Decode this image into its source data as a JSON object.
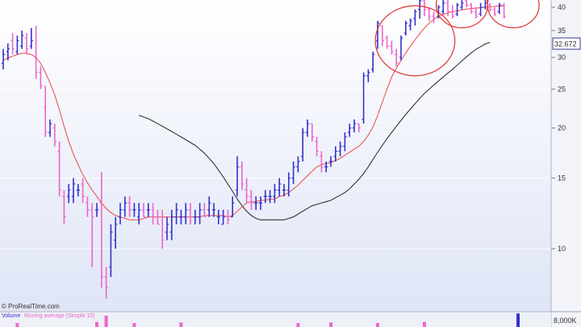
{
  "credit": "© ProRealTime.com",
  "price_readout": "32.672",
  "chart_data": {
    "type": "ohlc",
    "scale": "log",
    "ylim": [
      7.5,
      42
    ],
    "y_ticks": [
      40,
      35,
      30,
      25,
      20,
      15,
      10
    ],
    "grid": true,
    "colors": {
      "up": "#3333cc",
      "down": "#ee66cc",
      "ma_fast": "#ee5555",
      "ma_slow": "#333333",
      "circle": "#dd3333",
      "readout_box": "#ffffff"
    },
    "bars": [
      {
        "h": 31.5,
        "l": 28.0,
        "o": 29.0,
        "c": 30.5
      },
      {
        "h": 32.5,
        "l": 29.5,
        "o": 31.0,
        "c": 31.5
      },
      {
        "h": 34.5,
        "l": 30.5,
        "o": 33.0,
        "c": 31.5
      },
      {
        "h": 34.0,
        "l": 30.5,
        "o": 31.0,
        "c": 33.0
      },
      {
        "h": 35.0,
        "l": 31.5,
        "o": 32.0,
        "c": 34.0
      },
      {
        "h": 34.5,
        "l": 30.5,
        "o": 33.5,
        "c": 31.5
      },
      {
        "h": 35.5,
        "l": 31.5,
        "o": 32.0,
        "c": 33.0
      },
      {
        "h": 36.0,
        "l": 26.5,
        "o": 30.0,
        "c": 27.5
      },
      {
        "h": 28.5,
        "l": 25.0,
        "o": 27.5,
        "c": 25.5
      },
      {
        "h": 25.5,
        "l": 19.0,
        "o": 22.5,
        "c": 19.5
      },
      {
        "h": 21.0,
        "l": 19.0,
        "o": 19.5,
        "c": 20.5
      },
      {
        "h": 20.5,
        "l": 18.0,
        "o": 20.0,
        "c": 18.5
      },
      {
        "h": 18.5,
        "l": 13.5,
        "o": 17.5,
        "c": 14.0
      },
      {
        "h": 14.0,
        "l": 11.5,
        "o": 13.5,
        "c": 12.0
      },
      {
        "h": 14.5,
        "l": 13.0,
        "o": 13.5,
        "c": 14.0
      },
      {
        "h": 15.0,
        "l": 13.0,
        "o": 13.5,
        "c": 14.5
      },
      {
        "h": 14.5,
        "l": 13.5,
        "o": 14.0,
        "c": 14.0
      },
      {
        "h": 15.0,
        "l": 13.0,
        "o": 14.5,
        "c": 13.5
      },
      {
        "h": 13.5,
        "l": 12.0,
        "o": 13.0,
        "c": 12.5
      },
      {
        "h": 13.0,
        "l": 9.0,
        "o": 12.5,
        "c": 12.0
      },
      {
        "h": 13.0,
        "l": 12.0,
        "o": 12.5,
        "c": 12.5
      },
      {
        "h": 15.5,
        "l": 8.0,
        "o": 13.0,
        "c": 8.5
      },
      {
        "h": 9.0,
        "l": 7.5,
        "o": 8.5,
        "c": 8.0
      },
      {
        "h": 11.5,
        "l": 8.5,
        "o": 9.0,
        "c": 11.0
      },
      {
        "h": 12.0,
        "l": 10.0,
        "o": 10.5,
        "c": 11.5
      },
      {
        "h": 13.0,
        "l": 11.5,
        "o": 12.0,
        "c": 12.5
      },
      {
        "h": 13.5,
        "l": 12.0,
        "o": 12.5,
        "c": 13.0
      },
      {
        "h": 13.5,
        "l": 12.0,
        "o": 13.0,
        "c": 12.5
      },
      {
        "h": 13.0,
        "l": 12.0,
        "o": 12.5,
        "c": 12.5
      },
      {
        "h": 13.0,
        "l": 11.5,
        "o": 12.0,
        "c": 12.5
      },
      {
        "h": 13.0,
        "l": 12.0,
        "o": 12.5,
        "c": 12.0
      },
      {
        "h": 13.0,
        "l": 12.0,
        "o": 12.5,
        "c": 12.5
      },
      {
        "h": 13.0,
        "l": 11.5,
        "o": 12.5,
        "c": 12.0
      },
      {
        "h": 12.5,
        "l": 11.5,
        "o": 12.0,
        "c": 11.5
      },
      {
        "h": 12.5,
        "l": 10.0,
        "o": 12.0,
        "c": 10.5
      },
      {
        "h": 12.0,
        "l": 10.5,
        "o": 11.0,
        "c": 11.5
      },
      {
        "h": 12.5,
        "l": 10.5,
        "o": 11.0,
        "c": 12.0
      },
      {
        "h": 13.0,
        "l": 11.5,
        "o": 12.0,
        "c": 12.5
      },
      {
        "h": 12.5,
        "l": 11.5,
        "o": 12.0,
        "c": 12.0
      },
      {
        "h": 13.0,
        "l": 11.5,
        "o": 12.0,
        "c": 12.5
      },
      {
        "h": 13.0,
        "l": 11.5,
        "o": 12.5,
        "c": 12.0
      },
      {
        "h": 12.5,
        "l": 11.5,
        "o": 12.0,
        "c": 12.0
      },
      {
        "h": 13.0,
        "l": 11.5,
        "o": 12.0,
        "c": 12.5
      },
      {
        "h": 13.0,
        "l": 12.0,
        "o": 12.5,
        "c": 12.0
      },
      {
        "h": 13.5,
        "l": 12.0,
        "o": 12.5,
        "c": 13.0
      },
      {
        "h": 13.0,
        "l": 12.0,
        "o": 12.5,
        "c": 12.5
      },
      {
        "h": 12.5,
        "l": 11.5,
        "o": 12.0,
        "c": 12.0
      },
      {
        "h": 12.5,
        "l": 11.5,
        "o": 11.5,
        "c": 12.0
      },
      {
        "h": 12.5,
        "l": 11.5,
        "o": 12.0,
        "c": 11.8
      },
      {
        "h": 13.5,
        "l": 12.0,
        "o": 12.0,
        "c": 13.0
      },
      {
        "h": 17.0,
        "l": 13.5,
        "o": 14.0,
        "c": 16.0
      },
      {
        "h": 16.5,
        "l": 14.0,
        "o": 16.0,
        "c": 14.5
      },
      {
        "h": 15.0,
        "l": 13.0,
        "o": 14.0,
        "c": 13.5
      },
      {
        "h": 14.0,
        "l": 12.5,
        "o": 13.5,
        "c": 13.0
      },
      {
        "h": 13.5,
        "l": 12.5,
        "o": 13.0,
        "c": 13.0
      },
      {
        "h": 13.5,
        "l": 12.5,
        "o": 13.0,
        "c": 13.0
      },
      {
        "h": 14.0,
        "l": 13.0,
        "o": 13.5,
        "c": 13.5
      },
      {
        "h": 14.0,
        "l": 13.0,
        "o": 13.5,
        "c": 13.5
      },
      {
        "h": 14.5,
        "l": 13.0,
        "o": 13.5,
        "c": 14.0
      },
      {
        "h": 15.0,
        "l": 13.5,
        "o": 14.0,
        "c": 14.5
      },
      {
        "h": 14.5,
        "l": 13.5,
        "o": 14.0,
        "c": 14.0
      },
      {
        "h": 15.5,
        "l": 13.5,
        "o": 14.0,
        "c": 15.0
      },
      {
        "h": 16.5,
        "l": 14.5,
        "o": 15.0,
        "c": 16.0
      },
      {
        "h": 17.0,
        "l": 15.5,
        "o": 16.0,
        "c": 16.5
      },
      {
        "h": 20.0,
        "l": 16.5,
        "o": 17.0,
        "c": 19.5
      },
      {
        "h": 21.0,
        "l": 19.0,
        "o": 19.5,
        "c": 20.5
      },
      {
        "h": 20.5,
        "l": 18.5,
        "o": 20.5,
        "c": 19.0
      },
      {
        "h": 19.0,
        "l": 17.0,
        "o": 18.5,
        "c": 17.5
      },
      {
        "h": 17.5,
        "l": 15.5,
        "o": 17.0,
        "c": 16.0
      },
      {
        "h": 16.5,
        "l": 15.5,
        "o": 16.0,
        "c": 16.0
      },
      {
        "h": 17.0,
        "l": 16.0,
        "o": 16.5,
        "c": 16.5
      },
      {
        "h": 18.0,
        "l": 16.5,
        "o": 17.0,
        "c": 17.5
      },
      {
        "h": 18.5,
        "l": 17.0,
        "o": 17.5,
        "c": 18.0
      },
      {
        "h": 19.5,
        "l": 17.5,
        "o": 18.0,
        "c": 19.0
      },
      {
        "h": 20.5,
        "l": 19.0,
        "o": 19.5,
        "c": 20.0
      },
      {
        "h": 21.0,
        "l": 19.5,
        "o": 20.0,
        "c": 20.5
      },
      {
        "h": 20.5,
        "l": 19.5,
        "o": 20.5,
        "c": 20.0
      },
      {
        "h": 27.5,
        "l": 20.5,
        "o": 21.0,
        "c": 27.0
      },
      {
        "h": 28.0,
        "l": 26.0,
        "o": 27.0,
        "c": 27.5
      },
      {
        "h": 31.0,
        "l": 27.5,
        "o": 28.0,
        "c": 30.5
      },
      {
        "h": 37.0,
        "l": 31.5,
        "o": 33.0,
        "c": 36.5
      },
      {
        "h": 36.0,
        "l": 32.0,
        "o": 36.0,
        "c": 33.0
      },
      {
        "h": 34.0,
        "l": 31.5,
        "o": 33.5,
        "c": 32.0
      },
      {
        "h": 33.0,
        "l": 30.5,
        "o": 32.0,
        "c": 31.0
      },
      {
        "h": 31.5,
        "l": 28.5,
        "o": 30.5,
        "c": 29.0
      },
      {
        "h": 34.0,
        "l": 29.5,
        "o": 30.0,
        "c": 33.5
      },
      {
        "h": 37.0,
        "l": 34.0,
        "o": 34.5,
        "c": 36.5
      },
      {
        "h": 37.5,
        "l": 35.0,
        "o": 36.0,
        "c": 37.0
      },
      {
        "h": 39.5,
        "l": 36.0,
        "o": 37.5,
        "c": 39.0
      },
      {
        "h": 42.0,
        "l": 37.5,
        "o": 39.5,
        "c": 41.5
      },
      {
        "h": 42.0,
        "l": 38.0,
        "o": 41.5,
        "c": 39.5
      },
      {
        "h": 40.0,
        "l": 37.0,
        "o": 39.5,
        "c": 38.0
      },
      {
        "h": 39.0,
        "l": 36.5,
        "o": 38.0,
        "c": 37.5
      },
      {
        "h": 40.5,
        "l": 37.5,
        "o": 38.0,
        "c": 40.0
      },
      {
        "h": 42.0,
        "l": 38.5,
        "o": 39.0,
        "c": 41.0
      },
      {
        "h": 42.0,
        "l": 38.0,
        "o": 41.0,
        "c": 39.0
      },
      {
        "h": 40.5,
        "l": 37.5,
        "o": 39.0,
        "c": 38.0
      },
      {
        "h": 41.0,
        "l": 38.0,
        "o": 38.5,
        "c": 40.5
      },
      {
        "h": 42.0,
        "l": 39.5,
        "o": 40.0,
        "c": 41.0
      },
      {
        "h": 42.0,
        "l": 40.0,
        "o": 41.5,
        "c": 40.5
      },
      {
        "h": 41.0,
        "l": 38.5,
        "o": 40.5,
        "c": 39.0
      },
      {
        "h": 40.0,
        "l": 37.5,
        "o": 39.0,
        "c": 38.0
      },
      {
        "h": 41.0,
        "l": 38.0,
        "o": 38.5,
        "c": 40.0
      },
      {
        "h": 42.0,
        "l": 39.5,
        "o": 40.0,
        "c": 41.0
      },
      {
        "h": 41.0,
        "l": 39.0,
        "o": 40.5,
        "c": 39.5
      },
      {
        "h": 40.0,
        "l": 38.0,
        "o": 39.5,
        "c": 38.5
      },
      {
        "h": 41.0,
        "l": 38.5,
        "o": 39.0,
        "c": 40.5
      },
      {
        "h": 41.0,
        "l": 37.5,
        "o": 40.5,
        "c": 38.0
      }
    ],
    "ma_fast": [
      29.5,
      29.9,
      30.2,
      30.5,
      30.7,
      30.7,
      30.5,
      30.0,
      29.0,
      27.5,
      25.9,
      24.2,
      22.2,
      20.2,
      18.5,
      17.2,
      16.2,
      15.3,
      14.6,
      14.0,
      13.5,
      13.0,
      12.6,
      12.3,
      12.1,
      12.0,
      11.9,
      11.8,
      11.8,
      11.8,
      11.9,
      12.0,
      12.0,
      12.0,
      12.0,
      12.0,
      12.0,
      12.0,
      12.0,
      12.0,
      12.0,
      12.0,
      12.0,
      12.1,
      12.1,
      12.1,
      12.1,
      12.1,
      12.0,
      12.1,
      12.4,
      12.7,
      13.0,
      13.1,
      13.1,
      13.2,
      13.2,
      13.3,
      13.3,
      13.5,
      13.6,
      13.8,
      14.1,
      14.4,
      14.8,
      15.2,
      15.6,
      16.0,
      16.2,
      16.3,
      16.4,
      16.6,
      16.8,
      17.1,
      17.4,
      17.7,
      18.0,
      18.5,
      19.2,
      20.1,
      21.5,
      23.2,
      25.0,
      26.8,
      28.2,
      29.5,
      30.8,
      32.0,
      33.2,
      34.4,
      35.5,
      36.5,
      37.3,
      38.0,
      38.4,
      38.7,
      39.0,
      39.2,
      39.4,
      39.6,
      39.7,
      39.8,
      39.9,
      40.0,
      40.1,
      40.2,
      40.3,
      40.3
    ],
    "ma_slow_start": 29,
    "ma_slow": [
      21.5,
      21.3,
      21.1,
      20.8,
      20.5,
      20.2,
      19.9,
      19.6,
      19.3,
      19.0,
      18.7,
      18.4,
      18.1,
      17.7,
      17.3,
      16.8,
      16.3,
      15.7,
      15.1,
      14.5,
      13.9,
      13.3,
      12.8,
      12.4,
      12.1,
      11.9,
      11.8,
      11.8,
      11.8,
      11.8,
      11.8,
      11.8,
      11.9,
      12.0,
      12.2,
      12.4,
      12.6,
      12.8,
      12.9,
      13.0,
      13.1,
      13.2,
      13.4,
      13.6,
      13.8,
      14.1,
      14.5,
      14.9,
      15.4,
      16.0,
      16.7,
      17.4,
      18.1,
      18.8,
      19.5,
      20.2,
      20.9,
      21.6,
      22.3,
      23.0,
      23.7,
      24.4,
      25.0,
      25.6,
      26.2,
      26.8,
      27.4,
      28.0,
      28.7,
      29.4,
      30.1,
      30.8,
      31.4,
      31.9,
      32.4,
      32.7
    ],
    "highlight_circles": [
      {
        "bar": 88,
        "price": 33.0,
        "r_bars": 8.5
      },
      {
        "bar": 98,
        "price": 40.5,
        "r_bars": 5.5
      },
      {
        "bar": 109,
        "price": 40.5,
        "r_bars": 5.5
      }
    ],
    "volume": {
      "label": "Volume",
      "ma_label": "Moving average (Simple 10)",
      "axis_label": "8,000K",
      "spikes": [
        {
          "bar": 3,
          "value": 0.35,
          "up": false
        },
        {
          "bar": 20,
          "value": 0.45,
          "up": false
        },
        {
          "bar": 22,
          "value": 1.0,
          "up": false
        },
        {
          "bar": 28,
          "value": 0.35,
          "up": false
        },
        {
          "bar": 38,
          "value": 0.4,
          "up": false
        },
        {
          "bar": 63,
          "value": 0.35,
          "up": false
        },
        {
          "bar": 70,
          "value": 0.4,
          "up": false
        },
        {
          "bar": 80,
          "value": 0.35,
          "up": false
        },
        {
          "bar": 90,
          "value": 0.45,
          "up": false
        },
        {
          "bar": 110,
          "value": 1.2,
          "up": true
        }
      ]
    }
  }
}
